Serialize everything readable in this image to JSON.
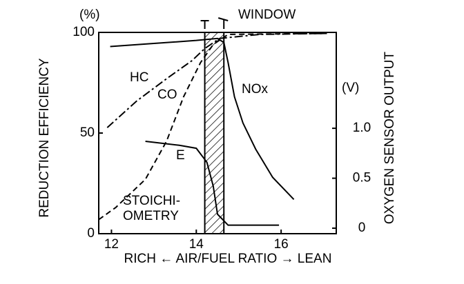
{
  "chart_data": {
    "type": "line",
    "xlabel": "RICH ← AIR/FUEL RATIO → LEAN",
    "ylabel": "REDUCTION EFFICIENCY",
    "yunit": "(%)",
    "y2label": "OXYGEN SENSOR OUTPUT",
    "y2unit": "(V)",
    "window_label": "WINDOW",
    "window": [
      14.2,
      14.65
    ],
    "annotation": [
      "STOICHI-",
      "OMETRY"
    ],
    "xlim": [
      11.7,
      17.3
    ],
    "xticks": [
      12,
      14,
      16
    ],
    "ylim": [
      0,
      100
    ],
    "yticks": [
      0,
      50,
      100
    ],
    "y2lim": [
      -0.055,
      1.96
    ],
    "y2ticks": [
      0,
      0.5,
      {
        "value": 1,
        "label": "1.0"
      }
    ],
    "series": [
      {
        "name": "NOx",
        "color": "#000000",
        "style": "solid",
        "x": [
          11.97,
          13,
          14,
          14.5,
          14.65,
          14.75,
          14.9,
          15.1,
          15.4,
          15.8,
          16.3
        ],
        "values": [
          93,
          94.5,
          96,
          97,
          95,
          85,
          68,
          55,
          42,
          28,
          17
        ]
      },
      {
        "name": "HC",
        "color": "#000000",
        "style": "dashdot",
        "x": [
          11.9,
          12.6,
          13.3,
          13.9,
          14.2,
          14.55,
          15.5,
          17.1
        ],
        "values": [
          52.7,
          66,
          77,
          86,
          92,
          97,
          99,
          99.5
        ]
      },
      {
        "name": "CO",
        "color": "#000000",
        "style": "dashed",
        "x": [
          11.7,
          12.1,
          12.8,
          13.3,
          13.7,
          14.1,
          14.4,
          14.75,
          17.1
        ],
        "values": [
          7,
          13,
          27,
          46,
          68,
          85,
          94,
          99,
          99.5
        ]
      },
      {
        "name": "E",
        "color": "#000000",
        "style": "solid",
        "axis": "y2",
        "x": [
          12.8,
          13.6,
          14.0,
          14.25,
          14.4,
          14.5,
          14.75,
          15.95
        ],
        "values": [
          0.87,
          0.83,
          0.8,
          0.66,
          0.42,
          0.14,
          0.03,
          0.03
        ]
      }
    ]
  }
}
